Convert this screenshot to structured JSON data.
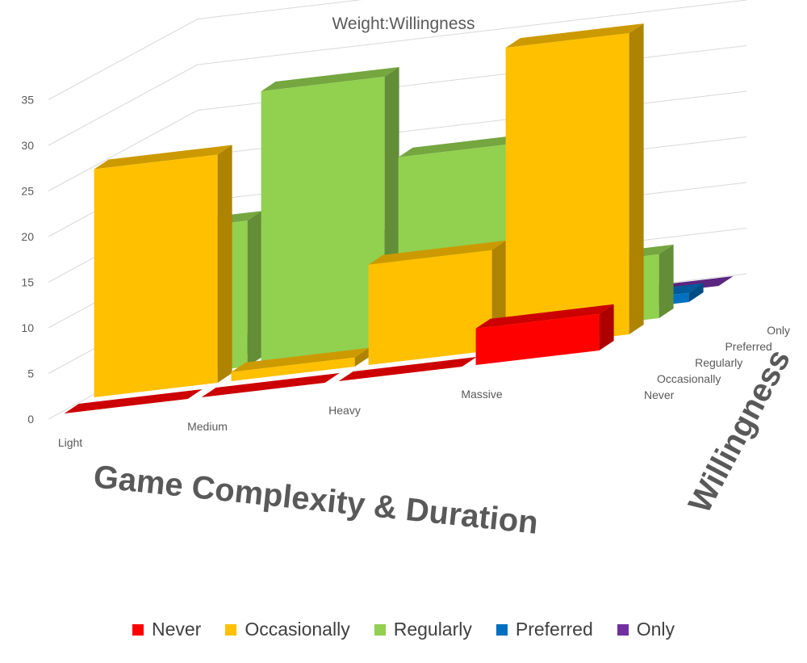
{
  "chart_data": {
    "type": "bar",
    "subtype": "3d-column",
    "title": "Weight:Willingness",
    "xlabel": "Game Complexity & Duration",
    "zlabel": "Willingness",
    "categories": [
      "Light",
      "Medium",
      "Heavy",
      "Massive"
    ],
    "yticks": [
      "0",
      "5",
      "10",
      "15",
      "20",
      "25",
      "30",
      "35"
    ],
    "ylim": [
      0,
      35
    ],
    "grid": true,
    "legend_position": "bottom",
    "series": [
      {
        "name": "Never",
        "color": "#ff0000",
        "values": [
          0,
          0,
          0,
          4
        ]
      },
      {
        "name": "Occasionally",
        "color": "#ffc000",
        "values": [
          25,
          1,
          11,
          33
        ]
      },
      {
        "name": "Regularly",
        "color": "#92d050",
        "values": [
          16,
          30,
          21,
          7
        ]
      },
      {
        "name": "Preferred",
        "color": "#0070c0",
        "values": [
          1,
          11,
          11,
          1
        ]
      },
      {
        "name": "Only",
        "color": "#7030a0",
        "values": [
          0,
          0,
          0,
          0
        ]
      }
    ]
  }
}
